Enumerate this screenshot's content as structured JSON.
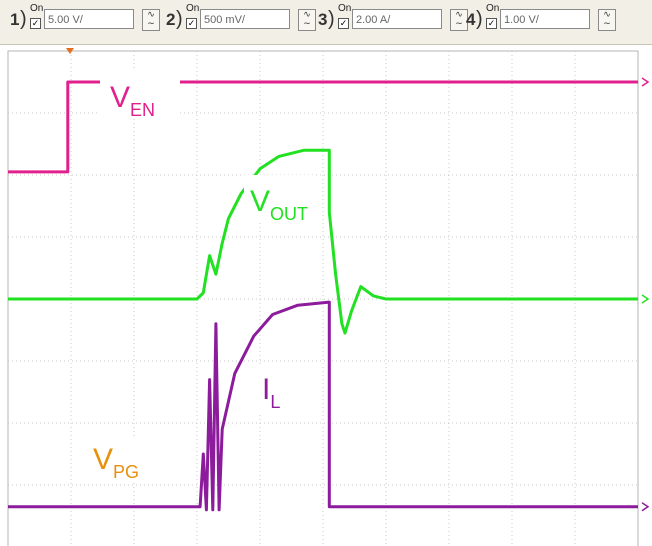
{
  "toolbar": {
    "channels": [
      {
        "num": "1",
        "paren": ")",
        "on_label": "On",
        "volts_per_div": "5.00 V/",
        "coupling": "AC"
      },
      {
        "num": "2",
        "paren": ")",
        "on_label": "On",
        "volts_per_div": "500 mV/",
        "coupling": "AC"
      },
      {
        "num": "3",
        "paren": ")",
        "on_label": "On",
        "volts_per_div": "2.00 A/",
        "coupling": "AC"
      },
      {
        "num": "4",
        "paren": ")",
        "on_label": "On",
        "volts_per_div": "1.00 V/",
        "coupling": "AC"
      }
    ]
  },
  "chart_data": {
    "type": "line",
    "title": "",
    "grid": true,
    "divisions": {
      "x": 10,
      "y": 8
    },
    "series": [
      {
        "name": "V_EN",
        "label_main": "V",
        "label_sub": "EN",
        "color": "#e0208c",
        "x": [
          0,
          0.95,
          0.95,
          10
        ],
        "y": [
          6.05,
          6.05,
          7.5,
          7.5
        ]
      },
      {
        "name": "V_OUT",
        "label_main": "V",
        "label_sub": "OUT",
        "color": "#22e022",
        "x": [
          0,
          3.0,
          3.1,
          3.2,
          3.3,
          3.4,
          3.5,
          3.7,
          4.0,
          4.3,
          4.7,
          5.1,
          5.1,
          5.2,
          5.3,
          5.35,
          5.45,
          5.6,
          5.8,
          6.0,
          6.3,
          10
        ],
        "y": [
          4.0,
          4.0,
          4.1,
          4.7,
          4.4,
          4.9,
          5.3,
          5.7,
          6.1,
          6.3,
          6.4,
          6.4,
          5.4,
          4.4,
          3.6,
          3.45,
          3.8,
          4.2,
          4.05,
          4.0,
          4.0,
          4.0
        ]
      },
      {
        "name": "I_L",
        "label_main": "I",
        "label_sub": "L",
        "color": "#8c1c9c",
        "x": [
          0,
          3.05,
          3.1,
          3.15,
          3.2,
          3.25,
          3.3,
          3.35,
          3.4,
          3.6,
          3.9,
          4.2,
          4.6,
          5.1,
          5.1,
          10
        ],
        "y": [
          0.65,
          0.65,
          1.5,
          0.6,
          2.7,
          0.6,
          3.6,
          0.6,
          1.9,
          2.8,
          3.4,
          3.75,
          3.9,
          3.95,
          0.65,
          0.65
        ]
      },
      {
        "name": "V_PG",
        "label_main": "V",
        "label_sub": "PG",
        "color": "#e8900c",
        "x": [
          0,
          10
        ],
        "y": [
          -0.3,
          -0.3
        ]
      }
    ]
  }
}
